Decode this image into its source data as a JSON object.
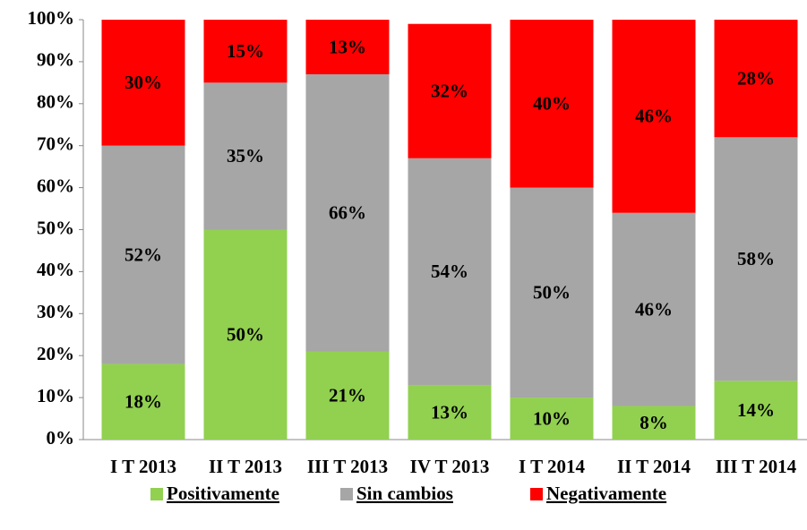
{
  "chart_data": {
    "type": "stacked_bar",
    "categories": [
      "I T 2013",
      "II T 2013",
      "III T 2013",
      "IV T 2013",
      "I T 2014",
      "II T 2014",
      "III T 2014"
    ],
    "series": [
      {
        "name": "Positivamente",
        "color": "#92d050",
        "values": [
          18,
          50,
          21,
          13,
          10,
          8,
          14
        ],
        "value_labels": [
          "18%",
          "50%",
          "21%",
          "13%",
          "10%",
          "8%",
          "14%"
        ]
      },
      {
        "name": "Sin cambios",
        "color": "#a6a6a6",
        "values": [
          52,
          35,
          66,
          54,
          50,
          46,
          58
        ],
        "value_labels": [
          "52%",
          "35%",
          "66%",
          "54%",
          "50%",
          "46%",
          "58%"
        ]
      },
      {
        "name": "Negativamente",
        "color": "#ff0000",
        "values": [
          30,
          15,
          13,
          32,
          40,
          46,
          28
        ],
        "value_labels": [
          "30%",
          "15%",
          "13%",
          "32%",
          "40%",
          "46%",
          "28%"
        ]
      }
    ],
    "ylim": [
      0,
      100
    ],
    "yticks": [
      {
        "value": 0,
        "label": "0%"
      },
      {
        "value": 10,
        "label": "10%"
      },
      {
        "value": 20,
        "label": "20%"
      },
      {
        "value": 30,
        "label": "30%"
      },
      {
        "value": 40,
        "label": "40%"
      },
      {
        "value": 50,
        "label": "50%"
      },
      {
        "value": 60,
        "label": "60%"
      },
      {
        "value": 70,
        "label": "70%"
      },
      {
        "value": 80,
        "label": "80%"
      },
      {
        "value": 90,
        "label": "90%"
      },
      {
        "value": 100,
        "label": "100%"
      }
    ],
    "legend": "bottom"
  }
}
